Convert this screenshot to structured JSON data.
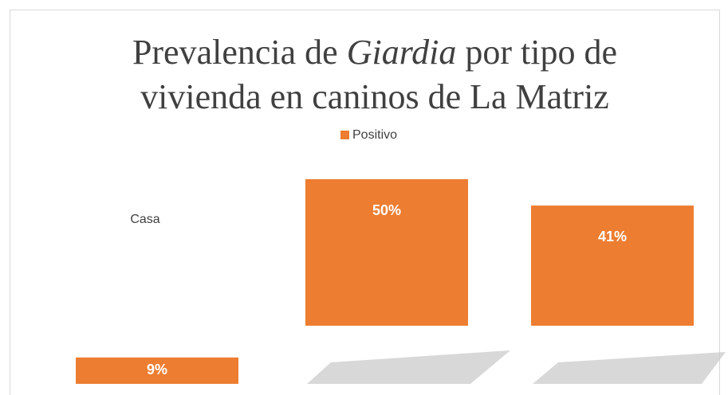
{
  "chart_data": {
    "type": "bar",
    "title": [
      "Prevalencia de ",
      "Giardia",
      " por tipo de",
      "vivienda en caninos de La Matriz"
    ],
    "categories": [
      "Casa",
      null,
      null
    ],
    "series": [
      {
        "name": "Positivo",
        "color": "#ed7d31",
        "values": [
          9,
          50,
          41
        ],
        "value_labels": [
          "9%",
          "50%",
          "41%"
        ]
      }
    ]
  }
}
